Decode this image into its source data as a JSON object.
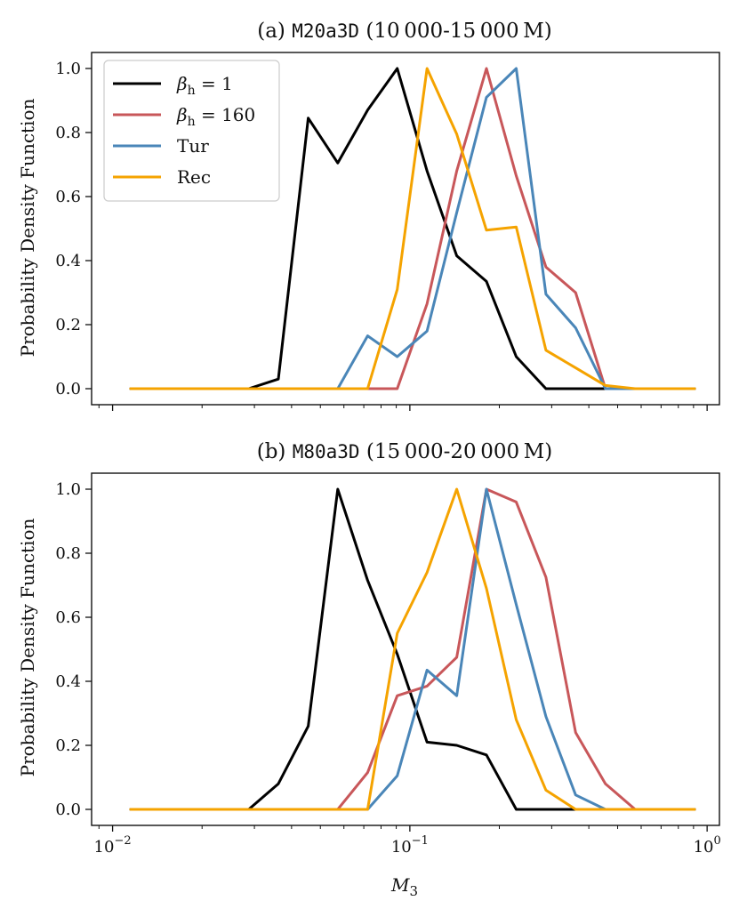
{
  "chart_data": [
    {
      "type": "line",
      "title_prefix": "(a) ",
      "title_code": "M20a3D",
      "title_suffix": " (10 000-15 000 M)",
      "xlabel": "",
      "ylabel": "Probability Density Function",
      "xscale": "log",
      "xlim": [
        0.0085,
        1.1
      ],
      "ylim": [
        -0.05,
        1.05
      ],
      "yticks": [
        "0.0",
        "0.2",
        "0.4",
        "0.6",
        "0.8",
        "1.0"
      ],
      "legend_position": "top-left",
      "x": [
        0.0115,
        0.0144,
        0.0181,
        0.0228,
        0.0287,
        0.0361,
        0.0455,
        0.0572,
        0.0721,
        0.0907,
        0.1142,
        0.1438,
        0.181,
        0.2279,
        0.2869,
        0.3612,
        0.4548,
        0.5726,
        0.7209,
        0.9077
      ],
      "series": [
        {
          "name": "βh = 1",
          "color": "#000000",
          "values": [
            0,
            0,
            0,
            0,
            0,
            0.03,
            0.845,
            0.705,
            0.87,
            1.0,
            0.68,
            0.415,
            0.335,
            0.1,
            0,
            0,
            0,
            0,
            0,
            0
          ]
        },
        {
          "name": "βh = 160",
          "color": "#c8575a",
          "values": [
            0,
            0,
            0,
            0,
            0,
            0,
            0,
            0,
            0,
            0,
            0.265,
            0.68,
            1.0,
            0.665,
            0.38,
            0.3,
            0,
            0,
            0,
            0
          ]
        },
        {
          "name": "Tur",
          "color": "#4a86b8",
          "values": [
            0,
            0,
            0,
            0,
            0,
            0,
            0,
            0,
            0.165,
            0.1,
            0.18,
            0.55,
            0.91,
            1.0,
            0.295,
            0.19,
            0,
            0,
            0,
            0
          ]
        },
        {
          "name": "Rec",
          "color": "#f5a300",
          "values": [
            0,
            0,
            0,
            0,
            0,
            0,
            0,
            0,
            0,
            0.31,
            1.0,
            0.795,
            0.495,
            0.505,
            0.12,
            0.065,
            0.01,
            0,
            0,
            0
          ]
        }
      ]
    },
    {
      "type": "line",
      "title_prefix": "(b) ",
      "title_code": "M80a3D",
      "title_suffix": " (15 000-20 000 M)",
      "xlabel": "M3",
      "ylabel": "Probability Density Function",
      "xscale": "log",
      "xlim": [
        0.0085,
        1.1
      ],
      "ylim": [
        -0.05,
        1.05
      ],
      "xticks": [
        {
          "base": "10",
          "exp": "−2"
        },
        {
          "base": "10",
          "exp": "−1"
        },
        {
          "base": "10",
          "exp": "0"
        }
      ],
      "yticks": [
        "0.0",
        "0.2",
        "0.4",
        "0.6",
        "0.8",
        "1.0"
      ],
      "x": [
        0.0115,
        0.0144,
        0.0181,
        0.0228,
        0.0287,
        0.0361,
        0.0455,
        0.0572,
        0.0721,
        0.0907,
        0.1142,
        0.1438,
        0.181,
        0.2279,
        0.2869,
        0.3612,
        0.4548,
        0.5726,
        0.7209,
        0.9077
      ],
      "series": [
        {
          "name": "βh = 1",
          "color": "#000000",
          "values": [
            0,
            0,
            0,
            0,
            0,
            0.08,
            0.26,
            1.0,
            0.715,
            0.485,
            0.21,
            0.2,
            0.17,
            0,
            0,
            0,
            0,
            0,
            0,
            0
          ]
        },
        {
          "name": "βh = 160",
          "color": "#c8575a",
          "values": [
            0,
            0,
            0,
            0,
            0,
            0,
            0,
            0,
            0.115,
            0.355,
            0.385,
            0.475,
            1.0,
            0.96,
            0.725,
            0.24,
            0.08,
            0,
            0,
            0
          ]
        },
        {
          "name": "Tur",
          "color": "#4a86b8",
          "values": [
            0,
            0,
            0,
            0,
            0,
            0,
            0,
            0,
            0,
            0.105,
            0.435,
            0.355,
            1.0,
            0.64,
            0.29,
            0.045,
            0,
            0,
            0,
            0
          ]
        },
        {
          "name": "Rec",
          "color": "#f5a300",
          "values": [
            0,
            0,
            0,
            0,
            0,
            0,
            0,
            0,
            0,
            0.55,
            0.74,
            1.0,
            0.69,
            0.28,
            0.06,
            0,
            0,
            0,
            0,
            0
          ]
        }
      ]
    }
  ],
  "legend": {
    "items": [
      {
        "sym": "β",
        "sub": "h",
        "rest": " = 1",
        "color": "#000000"
      },
      {
        "sym": "β",
        "sub": "h",
        "rest": " = 160",
        "color": "#c8575a"
      },
      {
        "sym": "Tur",
        "sub": "",
        "rest": "",
        "color": "#4a86b8"
      },
      {
        "sym": "Rec",
        "sub": "",
        "rest": "",
        "color": "#f5a300"
      }
    ]
  },
  "xaxis_label": {
    "main": "M",
    "sub": "3"
  }
}
